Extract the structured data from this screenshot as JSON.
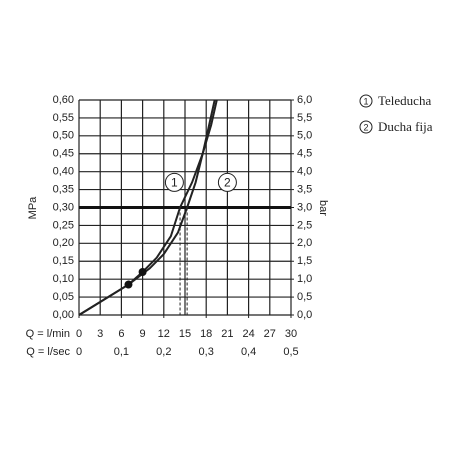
{
  "chart_data": {
    "type": "line",
    "y_label": "MPa",
    "y2_label": "bar",
    "x_label": "Q = l/min",
    "x2_label": "Q = l/sec",
    "xlim": [
      0,
      30
    ],
    "xticks": [
      0,
      3,
      6,
      9,
      12,
      15,
      18,
      21,
      24,
      27,
      30
    ],
    "x2lim": [
      0,
      0.5
    ],
    "x2ticks": [
      0,
      {
        "value": 0.1,
        "label": "0,1"
      },
      {
        "value": 0.2,
        "label": "0,2"
      },
      {
        "value": 0.3,
        "label": "0,3"
      },
      {
        "value": 0.4,
        "label": "0,4"
      },
      {
        "value": 0.5,
        "label": "0,5"
      }
    ],
    "ylim": [
      0,
      0.6
    ],
    "yticks": [
      {
        "value": 0,
        "label": "0,00"
      },
      {
        "value": 0.05,
        "label": "0,05"
      },
      {
        "value": 0.1,
        "label": "0,10"
      },
      {
        "value": 0.15,
        "label": "0,15"
      },
      {
        "value": 0.2,
        "label": "0,20"
      },
      {
        "value": 0.25,
        "label": "0,25"
      },
      {
        "value": 0.3,
        "label": "0,30"
      },
      {
        "value": 0.35,
        "label": "0,35"
      },
      {
        "value": 0.4,
        "label": "0,40"
      },
      {
        "value": 0.45,
        "label": "0,45"
      },
      {
        "value": 0.5,
        "label": "0,50"
      },
      {
        "value": 0.55,
        "label": "0,55"
      },
      {
        "value": 0.6,
        "label": "0,60"
      }
    ],
    "y2lim": [
      0,
      6
    ],
    "y2ticks": [
      {
        "value": 0,
        "label": "0,0"
      },
      {
        "value": 0.5,
        "label": "0,5"
      },
      {
        "value": 1,
        "label": "1,0"
      },
      {
        "value": 1.5,
        "label": "1,5"
      },
      {
        "value": 2,
        "label": "2,0"
      },
      {
        "value": 2.5,
        "label": "2,5"
      },
      {
        "value": 3,
        "label": "3,0"
      },
      {
        "value": 3.5,
        "label": "3,5"
      },
      {
        "value": 4,
        "label": "4,0"
      },
      {
        "value": 4.5,
        "label": "4,5"
      },
      {
        "value": 5,
        "label": "5,0"
      },
      {
        "value": 5.5,
        "label": "5,5"
      },
      {
        "value": 6,
        "label": "6,0"
      }
    ],
    "grid": true,
    "hline": 0.3,
    "dashed_x": [
      14.3,
      15.3
    ],
    "dots": {
      "x": [
        7,
        9
      ],
      "y": [
        0.085,
        0.12
      ]
    },
    "series": [
      {
        "name": "Teleducha",
        "number": "1",
        "color": "#222",
        "label_at": [
          13.5,
          0.37
        ],
        "x": [
          0,
          7,
          9,
          11,
          13,
          14.3,
          16,
          17.5,
          18.7,
          19.5
        ],
        "values": [
          0,
          0.085,
          0.12,
          0.16,
          0.22,
          0.3,
          0.37,
          0.45,
          0.53,
          0.6
        ]
      },
      {
        "name": "Ducha fija",
        "number": "2",
        "color": "#222",
        "label_at": [
          21,
          0.37
        ],
        "x": [
          0,
          7,
          10,
          12,
          14,
          15.3,
          16.5,
          17.5,
          18.3,
          19.2
        ],
        "values": [
          0,
          0.085,
          0.13,
          0.17,
          0.23,
          0.3,
          0.37,
          0.45,
          0.52,
          0.6
        ]
      }
    ]
  }
}
